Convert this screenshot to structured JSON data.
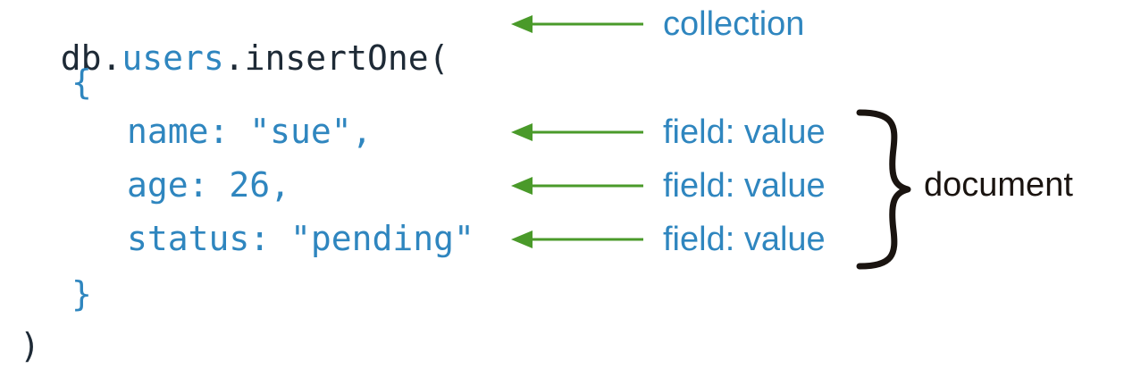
{
  "code": {
    "prefix": "db.",
    "collection": "users",
    "method": ".insertOne(",
    "open_brace": "{",
    "fields": [
      {
        "text": "name: \"sue\","
      },
      {
        "text": "age: 26,"
      },
      {
        "text": "status: \"pending\""
      }
    ],
    "close_brace": "}",
    "close_paren": ")"
  },
  "annotations": {
    "collection": "collection",
    "field_value": [
      "field: value",
      "field: value",
      "field: value"
    ],
    "document": "document"
  },
  "colors": {
    "code_text": "#1e2a36",
    "code_blue": "#2f86bf",
    "arrow_green": "#4a9a2a",
    "brace": "#1a1410"
  }
}
